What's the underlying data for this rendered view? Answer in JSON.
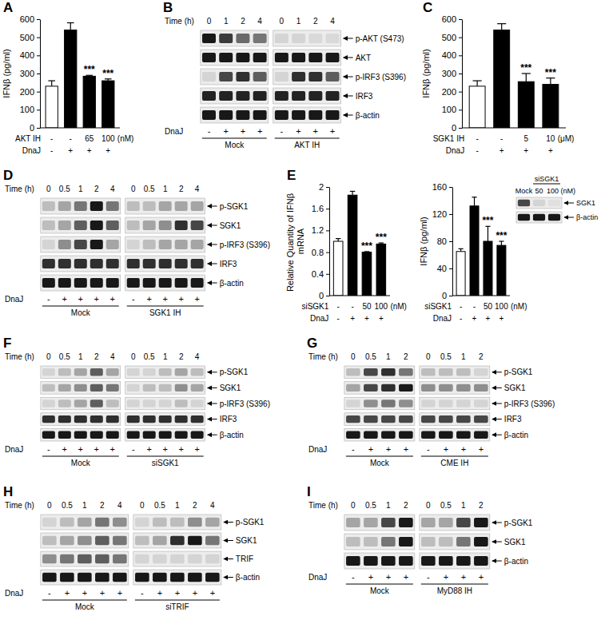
{
  "chart_data": [
    {
      "type": "bar",
      "panel": "A",
      "ylabel": "IFNβ (pg/ml)",
      "categories": [
        null,
        null,
        null,
        null
      ],
      "values": [
        230,
        540,
        285,
        260
      ],
      "errors": [
        30,
        40,
        5,
        10
      ],
      "colors": [
        "#ffffff",
        "#000000",
        "#000000",
        "#000000"
      ],
      "ylim": [
        0,
        600
      ],
      "yticks": [
        0,
        100,
        200,
        300,
        400,
        500,
        600
      ],
      "significance": [
        null,
        null,
        "***",
        "***"
      ],
      "conditions": [
        {
          "label": "AKT IH",
          "values": [
            "-",
            "-",
            "65",
            "100"
          ],
          "unit": "(nM)"
        },
        {
          "label": "DnaJ",
          "values": [
            "-",
            "+",
            "+",
            "+"
          ]
        }
      ]
    },
    {
      "type": "western_blot",
      "panel": "B",
      "time_label": "Time (h)",
      "treatment_label": "DnaJ",
      "groups": [
        {
          "label": "Mock",
          "time": [
            "0",
            "1",
            "2",
            "4"
          ],
          "treatment": [
            "-",
            "+",
            "+",
            "+"
          ]
        },
        {
          "label": "AKT IH",
          "time": [
            "0",
            "1",
            "2",
            "4"
          ],
          "treatment": [
            "-",
            "+",
            "+",
            "+"
          ]
        }
      ],
      "rows": [
        {
          "label": "p-AKT (S473)",
          "bands": [
            0.9,
            0.75,
            0.55,
            0.5,
            0.1,
            0.1,
            0.08,
            0.08
          ]
        },
        {
          "label": "AKT",
          "bands": [
            0.9,
            0.9,
            0.9,
            0.9,
            0.9,
            0.9,
            0.9,
            0.9
          ]
        },
        {
          "label": "p-IRF3 (S396)",
          "bands": [
            0.1,
            0.7,
            0.8,
            0.6,
            0.1,
            0.8,
            0.8,
            0.6
          ]
        },
        {
          "label": "IRF3",
          "bands": [
            0.85,
            0.85,
            0.85,
            0.85,
            0.85,
            0.85,
            0.85,
            0.85
          ]
        },
        {
          "label": "β-actin",
          "bands": [
            0.9,
            0.9,
            0.9,
            0.9,
            0.9,
            0.9,
            0.9,
            0.9
          ]
        }
      ]
    },
    {
      "type": "bar",
      "panel": "C",
      "ylabel": "IFNβ (pg/ml)",
      "categories": [
        null,
        null,
        null,
        null
      ],
      "values": [
        230,
        540,
        255,
        240
      ],
      "errors": [
        30,
        35,
        45,
        35
      ],
      "colors": [
        "#ffffff",
        "#000000",
        "#000000",
        "#000000"
      ],
      "ylim": [
        0,
        600
      ],
      "yticks": [
        0,
        100,
        200,
        300,
        400,
        500,
        600
      ],
      "significance": [
        null,
        null,
        "***",
        "***"
      ],
      "conditions": [
        {
          "label": "SGK1 IH",
          "values": [
            "-",
            "-",
            "5",
            "10"
          ],
          "unit": "(μM)"
        },
        {
          "label": "DnaJ",
          "values": [
            "-",
            "+",
            "+",
            "+"
          ]
        }
      ]
    },
    {
      "type": "western_blot",
      "panel": "D",
      "time_label": "Time (h)",
      "treatment_label": "DnaJ",
      "groups": [
        {
          "label": "Mock",
          "time": [
            "0",
            "0.5",
            "1",
            "2",
            "4"
          ],
          "treatment": [
            "-",
            "+",
            "+",
            "+",
            "+"
          ]
        },
        {
          "label": "SGK1 IH",
          "time": [
            "0",
            "0.5",
            "1",
            "2",
            "4"
          ],
          "treatment": [
            "-",
            "+",
            "+",
            "+",
            "+"
          ]
        }
      ],
      "rows": [
        {
          "label": "p-SGK1",
          "bands": [
            0.2,
            0.3,
            0.5,
            0.9,
            0.5,
            0.2,
            0.2,
            0.3,
            0.3,
            0.3
          ]
        },
        {
          "label": "SGK1",
          "bands": [
            0.2,
            0.3,
            0.6,
            0.9,
            0.6,
            0.2,
            0.3,
            0.4,
            0.8,
            0.7
          ]
        },
        {
          "label": "p-IRF3 (S396)",
          "bands": [
            0.1,
            0.4,
            0.7,
            0.9,
            0.3,
            0.1,
            0.2,
            0.3,
            0.3,
            0.3
          ]
        },
        {
          "label": "IRF3",
          "bands": [
            0.8,
            0.8,
            0.8,
            0.8,
            0.8,
            0.8,
            0.8,
            0.8,
            0.8,
            0.8
          ]
        },
        {
          "label": "β-actin",
          "bands": [
            0.9,
            0.9,
            0.9,
            0.9,
            0.9,
            0.9,
            0.9,
            0.9,
            0.9,
            0.9
          ]
        }
      ]
    },
    {
      "type": "bar",
      "panel": "E",
      "ylabel": "Relative Quantity of IFNβ mRNA",
      "categories": [
        null,
        null,
        null,
        null
      ],
      "values": [
        1.0,
        1.85,
        0.8,
        0.95
      ],
      "errors": [
        0.05,
        0.07,
        0.01,
        0.02
      ],
      "colors": [
        "#ffffff",
        "#000000",
        "#000000",
        "#000000"
      ],
      "ylim": [
        0,
        2
      ],
      "yticks": [
        0,
        0.4,
        0.8,
        1.2,
        1.6,
        2
      ],
      "significance": [
        null,
        null,
        "***",
        "***"
      ],
      "conditions": [
        {
          "label": "siSGK1",
          "values": [
            "-",
            "-",
            "50",
            "100"
          ],
          "unit": "(nM)"
        },
        {
          "label": "DnaJ",
          "values": [
            "-",
            "+",
            "+",
            "+"
          ]
        }
      ]
    },
    {
      "type": "bar",
      "ylabel": "IFNβ (pg/ml)",
      "categories": [
        null,
        null,
        null,
        null
      ],
      "values": [
        65,
        132,
        80,
        74
      ],
      "errors": [
        4,
        13,
        22,
        6
      ],
      "colors": [
        "#ffffff",
        "#000000",
        "#000000",
        "#000000"
      ],
      "ylim": [
        0,
        160
      ],
      "yticks": [
        0,
        40,
        80,
        120,
        160
      ],
      "significance": [
        null,
        null,
        "***",
        "***"
      ],
      "conditions": [
        {
          "label": "siSGK1",
          "values": [
            "-",
            "-",
            "50",
            "100"
          ],
          "unit": "(nM)"
        },
        {
          "label": "DnaJ",
          "values": [
            "-",
            "+",
            "+",
            "+"
          ]
        }
      ]
    },
    {
      "type": "western_blot",
      "header": "siSGK1",
      "lanes": [
        "Mock",
        "50",
        "100 (nM)"
      ],
      "rows": [
        {
          "label": "SGK1",
          "bands": [
            0.7,
            0.1,
            0.05
          ]
        },
        {
          "label": "β-actin",
          "bands": [
            0.9,
            0.9,
            0.9
          ]
        }
      ]
    },
    {
      "type": "western_blot",
      "panel": "F",
      "time_label": "Time (h)",
      "treatment_label": "DnaJ",
      "groups": [
        {
          "label": "Mock",
          "time": [
            "0",
            "0.5",
            "1",
            "2",
            "4"
          ],
          "treatment": [
            "-",
            "+",
            "+",
            "+",
            "+"
          ]
        },
        {
          "label": "siSGK1",
          "time": [
            "0",
            "0.5",
            "1",
            "2",
            "4"
          ],
          "treatment": [
            "-",
            "+",
            "+",
            "+",
            "+"
          ]
        }
      ],
      "rows": [
        {
          "label": "p-SGK1",
          "bands": [
            0.1,
            0.2,
            0.3,
            0.6,
            0.3,
            0.1,
            0.1,
            0.2,
            0.3,
            0.2
          ]
        },
        {
          "label": "SGK1",
          "bands": [
            0.2,
            0.3,
            0.4,
            0.6,
            0.5,
            0.1,
            0.2,
            0.2,
            0.4,
            0.3
          ]
        },
        {
          "label": "p-IRF3 (S396)",
          "bands": [
            0.1,
            0.2,
            0.3,
            0.6,
            0.2,
            0.1,
            0.1,
            0.1,
            0.2,
            0.1
          ]
        },
        {
          "label": "IRF3",
          "bands": [
            0.8,
            0.8,
            0.8,
            0.8,
            0.8,
            0.8,
            0.8,
            0.8,
            0.8,
            0.8
          ]
        },
        {
          "label": "β-actin",
          "bands": [
            0.9,
            0.9,
            0.9,
            0.9,
            0.9,
            0.9,
            0.9,
            0.9,
            0.9,
            0.9
          ]
        }
      ]
    },
    {
      "type": "western_blot",
      "panel": "G",
      "time_label": "Time (h)",
      "treatment_label": "DnaJ",
      "groups": [
        {
          "label": "Mock",
          "time": [
            "0",
            "0.5",
            "1",
            "2"
          ],
          "treatment": [
            "-",
            "+",
            "+",
            "+"
          ]
        },
        {
          "label": "CME IH",
          "time": [
            "0",
            "0.5",
            "1",
            "2"
          ],
          "treatment": [
            "-",
            "+",
            "+",
            "+"
          ]
        }
      ],
      "rows": [
        {
          "label": "p-SGK1",
          "bands": [
            0.2,
            0.7,
            0.8,
            0.5,
            0.2,
            0.2,
            0.2,
            0.1
          ]
        },
        {
          "label": "SGK1",
          "bands": [
            0.3,
            0.7,
            0.8,
            0.9,
            0.4,
            0.4,
            0.4,
            0.4
          ]
        },
        {
          "label": "p-IRF3 (S396)",
          "bands": [
            0.1,
            0.4,
            0.5,
            0.4,
            0.1,
            0.1,
            0.1,
            0.1
          ]
        },
        {
          "label": "IRF3",
          "bands": [
            0.7,
            0.7,
            0.7,
            0.7,
            0.7,
            0.7,
            0.7,
            0.7
          ]
        },
        {
          "label": "β-actin",
          "bands": [
            0.9,
            0.9,
            0.9,
            0.9,
            0.9,
            0.9,
            0.9,
            0.9
          ]
        }
      ]
    },
    {
      "type": "western_blot",
      "panel": "H",
      "time_label": "Time (h)",
      "treatment_label": "DnaJ",
      "groups": [
        {
          "label": "Mock",
          "time": [
            "0",
            "0.5",
            "1",
            "2",
            "4"
          ],
          "treatment": [
            "-",
            "+",
            "+",
            "+",
            "+"
          ]
        },
        {
          "label": "siTRIF",
          "time": [
            "0",
            "0.5",
            "1",
            "2",
            "4"
          ],
          "treatment": [
            "-",
            "+",
            "+",
            "+",
            "+"
          ]
        }
      ],
      "rows": [
        {
          "label": "p-SGK1",
          "bands": [
            0.1,
            0.2,
            0.3,
            0.5,
            0.4,
            0.1,
            0.2,
            0.2,
            0.4,
            0.3
          ]
        },
        {
          "label": "SGK1",
          "bands": [
            0.2,
            0.3,
            0.4,
            0.6,
            0.5,
            0.2,
            0.3,
            0.8,
            0.9,
            0.5
          ]
        },
        {
          "label": "TRIF",
          "bands": [
            0.4,
            0.5,
            0.6,
            0.6,
            0.5,
            0.1,
            0.1,
            0.1,
            0.1,
            0.1
          ]
        },
        {
          "label": "β-actin",
          "bands": [
            0.9,
            0.9,
            0.9,
            0.9,
            0.9,
            0.9,
            0.9,
            0.9,
            0.9,
            0.9
          ]
        }
      ]
    },
    {
      "type": "western_blot",
      "panel": "I",
      "time_label": "Time (h)",
      "treatment_label": "DnaJ",
      "groups": [
        {
          "label": "Mock",
          "time": [
            "0",
            "0.5",
            "1",
            "2"
          ],
          "treatment": [
            "-",
            "+",
            "+",
            "+"
          ]
        },
        {
          "label": "MyD88 IH",
          "time": [
            "0",
            "0.5",
            "1",
            "2"
          ],
          "treatment": [
            "-",
            "+",
            "+",
            "+"
          ]
        }
      ],
      "rows": [
        {
          "label": "p-SGK1",
          "bands": [
            0.3,
            0.3,
            0.7,
            0.9,
            0.3,
            0.3,
            0.7,
            0.9
          ]
        },
        {
          "label": "SGK1",
          "bands": [
            0.2,
            0.2,
            0.5,
            0.9,
            0.2,
            0.2,
            0.5,
            0.9
          ]
        },
        {
          "label": "β-actin",
          "bands": [
            0.9,
            0.9,
            0.9,
            0.9,
            0.9,
            0.9,
            0.9,
            0.9
          ]
        }
      ]
    }
  ]
}
